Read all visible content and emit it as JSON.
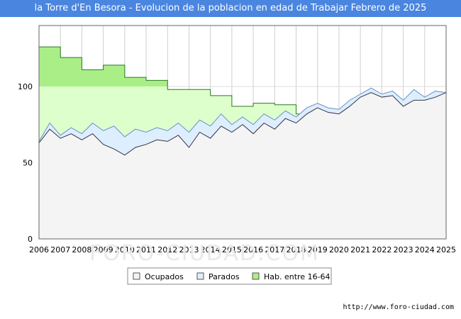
{
  "title": "la Torre d'En Besora - Evolucion de la poblacion en edad de Trabajar Febrero de 2025",
  "watermark": "FORO-CIUDAD.COM",
  "source": "http://www.foro-ciudad.com",
  "colors": {
    "title_bg": "#4a86e0",
    "hab_fill": "#ddffcc",
    "hab_fill_high": "#aaee88",
    "hab_line": "#2b7a1e",
    "parados_fill": "#ddeeff",
    "ocupados_fill": "#f4f4f4",
    "ocupados_line": "#333344"
  },
  "chart_data": {
    "type": "area",
    "title": "la Torre d'En Besora - Evolucion de la poblacion en edad de Trabajar Febrero de 2025",
    "xlim": [
      2006,
      2025
    ],
    "ylim": [
      0,
      140
    ],
    "y_ticks": [
      0,
      50,
      100
    ],
    "x_ticks": [
      "2006",
      "2007",
      "2008",
      "2009",
      "2010",
      "2011",
      "2012",
      "2013",
      "2014",
      "2015",
      "2016",
      "2017",
      "2018",
      "2019",
      "2020",
      "2021",
      "2022",
      "2023",
      "2024",
      "2025"
    ],
    "grid": true,
    "legend": [
      {
        "key": "ocupados",
        "label": "Ocupados"
      },
      {
        "key": "parados",
        "label": "Parados"
      },
      {
        "key": "hab",
        "label": "Hab. entre 16-64"
      }
    ],
    "hab_16_64": {
      "years": [
        2006,
        2007,
        2008,
        2009,
        2010,
        2011,
        2012,
        2013,
        2014,
        2015,
        2016,
        2017,
        2018
      ],
      "values": [
        126,
        119,
        111,
        114,
        106,
        104,
        98,
        98,
        94,
        87,
        89,
        88,
        82
      ]
    },
    "parados": {
      "x": [
        2006,
        2006.5,
        2007,
        2007.5,
        2008,
        2008.5,
        2009,
        2009.5,
        2010,
        2010.5,
        2011,
        2011.5,
        2012,
        2012.5,
        2013,
        2013.5,
        2014,
        2014.5,
        2015,
        2015.5,
        2016,
        2016.5,
        2017,
        2017.5,
        2018,
        2018.5,
        2019,
        2019.5,
        2020,
        2020.5,
        2021,
        2021.5,
        2022,
        2022.5,
        2023,
        2023.5,
        2024,
        2024.5,
        2025
      ],
      "values": [
        64,
        76,
        68,
        73,
        69,
        76,
        71,
        74,
        67,
        72,
        70,
        73,
        71,
        76,
        70,
        78,
        74,
        82,
        75,
        80,
        75,
        82,
        78,
        84,
        80,
        86,
        89,
        86,
        85,
        91,
        95,
        99,
        95,
        97,
        91,
        98,
        93,
        97,
        96
      ]
    },
    "ocupados": {
      "x": [
        2006,
        2006.5,
        2007,
        2007.5,
        2008,
        2008.5,
        2009,
        2009.5,
        2010,
        2010.5,
        2011,
        2011.5,
        2012,
        2012.5,
        2013,
        2013.5,
        2014,
        2014.5,
        2015,
        2015.5,
        2016,
        2016.5,
        2017,
        2017.5,
        2018,
        2018.5,
        2019,
        2019.5,
        2020,
        2020.5,
        2021,
        2021.5,
        2022,
        2022.5,
        2023,
        2023.5,
        2024,
        2024.5,
        2025
      ],
      "values": [
        63,
        72,
        66,
        69,
        65,
        69,
        62,
        59,
        55,
        60,
        62,
        65,
        64,
        68,
        60,
        70,
        66,
        74,
        70,
        75,
        69,
        76,
        72,
        79,
        76,
        82,
        86,
        83,
        82,
        87,
        93,
        96,
        93,
        94,
        87,
        91,
        91,
        93,
        96
      ]
    }
  }
}
